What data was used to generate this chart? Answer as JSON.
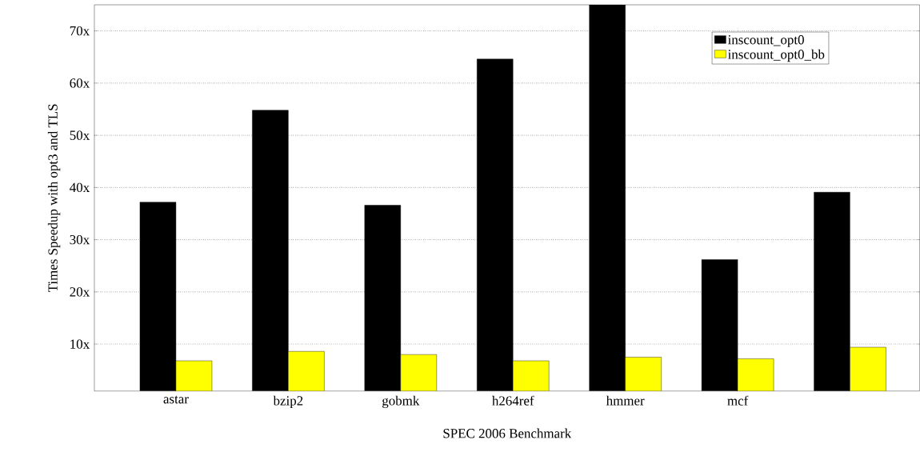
{
  "chart_data": {
    "type": "bar",
    "xlabel": "SPEC 2006 Benchmark",
    "ylabel": "Times Speedup with opt3 and TLS",
    "categories": [
      "astar",
      "bzip2",
      "gobmk",
      "h264ref",
      "hmmer",
      "mcf",
      null
    ],
    "series": [
      {
        "name": "inscount_opt0",
        "color": "#000000",
        "values": [
          37.2,
          54.8,
          36.6,
          64.6,
          75,
          26.2,
          39.1
        ]
      },
      {
        "name": "inscount_opt0_bb",
        "color": "#ffff00",
        "values": [
          6.8,
          8.6,
          8.0,
          6.8,
          7.5,
          7.2,
          9.4
        ]
      }
    ],
    "ylim": [
      1,
      75
    ],
    "yticks": [
      {
        "value": 10,
        "label": "10x"
      },
      {
        "value": 20,
        "label": "20x"
      },
      {
        "value": 30,
        "label": "30x"
      },
      {
        "value": 40,
        "label": "40x"
      },
      {
        "value": 50,
        "label": "50x"
      },
      {
        "value": 60,
        "label": "60x"
      },
      {
        "value": 70,
        "label": "70x"
      }
    ],
    "grid": "y",
    "legend": "top right"
  }
}
